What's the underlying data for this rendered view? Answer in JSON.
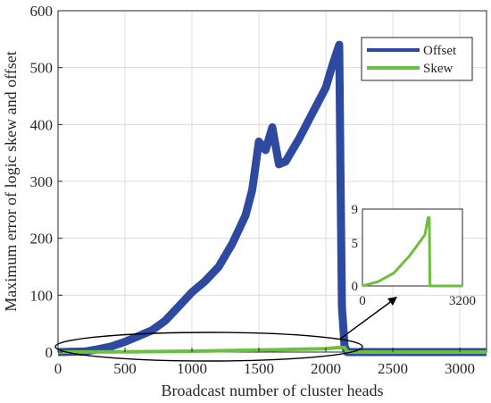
{
  "chart_data": {
    "type": "line",
    "xlabel": "Broadcast number of cluster heads",
    "ylabel": "Maximum error of logic skew and offset",
    "xlim": [
      0,
      3200
    ],
    "ylim": [
      0,
      600
    ],
    "xticks": [
      0,
      500,
      1000,
      1500,
      2000,
      2500,
      3000
    ],
    "yticks": [
      0,
      100,
      200,
      300,
      400,
      500,
      600
    ],
    "grid": true,
    "legend_position": "top-right",
    "series": [
      {
        "name": "Offset",
        "color": "#2E4AA0",
        "x": [
          0,
          200,
          300,
          400,
          500,
          600,
          700,
          800,
          900,
          1000,
          1100,
          1200,
          1300,
          1400,
          1450,
          1500,
          1550,
          1600,
          1650,
          1700,
          1800,
          1900,
          2000,
          2050,
          2100,
          2110,
          2120,
          2140,
          2160,
          2500,
          3000,
          3200
        ],
        "y": [
          0,
          1,
          5,
          10,
          18,
          28,
          38,
          55,
          80,
          105,
          125,
          150,
          190,
          240,
          285,
          370,
          355,
          395,
          330,
          335,
          375,
          420,
          465,
          505,
          540,
          300,
          80,
          10,
          0,
          0,
          0,
          0
        ]
      },
      {
        "name": "Skew",
        "color": "#6CBF3F",
        "x": [
          0,
          500,
          1000,
          1500,
          2000,
          2100,
          2140,
          2160,
          2500,
          3000,
          3200
        ],
        "y": [
          0,
          0.5,
          1.5,
          3.5,
          6,
          8,
          8,
          0,
          0,
          0,
          0
        ]
      }
    ],
    "inset": {
      "series": "Skew",
      "xlim": [
        0,
        3200
      ],
      "ylim": [
        0,
        9
      ],
      "xticks": [
        0,
        3200
      ],
      "yticks": [
        0,
        5,
        9
      ]
    }
  }
}
